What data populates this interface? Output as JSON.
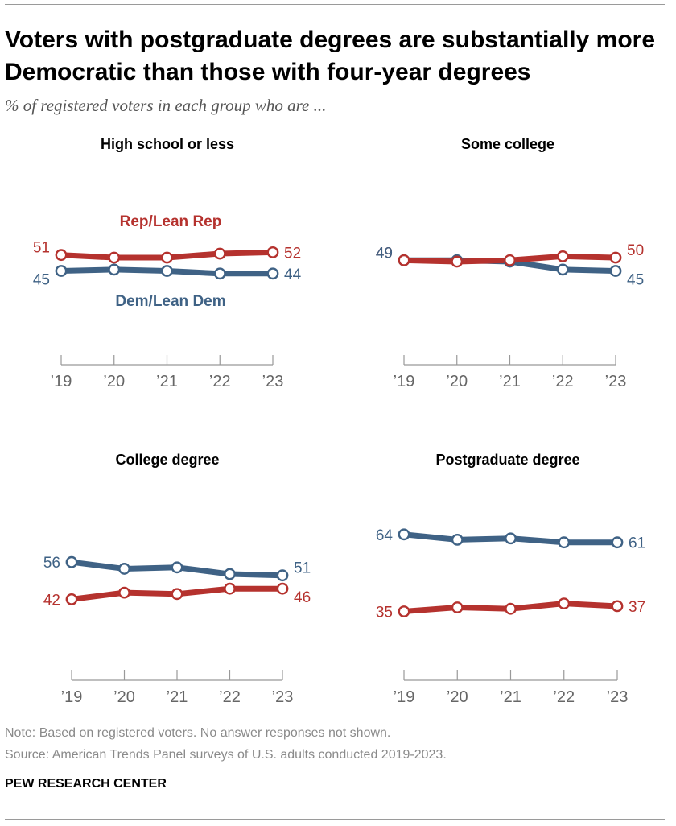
{
  "header": {
    "title": "Voters with postgraduate degrees are substantially more Democratic than those with four-year degrees",
    "subtitle": "% of registered voters in each group who are ..."
  },
  "footer": {
    "note": "Note: Based on registered voters. No answer responses not shown.",
    "source": "Source: American Trends Panel surveys of U.S. adults conducted 2019-2023.",
    "brand": "PEW RESEARCH CENTER"
  },
  "colors": {
    "rep": "#b5322e",
    "dem": "#3f6285",
    "axis": "#999999"
  },
  "chart_data": [
    {
      "type": "line",
      "title": "High school or less",
      "x": [
        "’19",
        "’20",
        "’21",
        "’22",
        "’23"
      ],
      "series": [
        {
          "name": "Rep/Lean Rep",
          "values": [
            51,
            50,
            50,
            51.5,
            52
          ],
          "start_label": "51",
          "end_label": "52"
        },
        {
          "name": "Dem/Lean Dem",
          "values": [
            45,
            45.5,
            45,
            44,
            44
          ],
          "start_label": "45",
          "end_label": "44"
        }
      ],
      "legend": [
        "Rep/Lean Rep",
        "Dem/Lean Dem"
      ]
    },
    {
      "type": "line",
      "title": "Some college",
      "x": [
        "’19",
        "’20",
        "’21",
        "’22",
        "’23"
      ],
      "series": [
        {
          "name": "Rep/Lean Rep",
          "values": [
            49,
            48.5,
            49,
            50.5,
            50
          ],
          "start_label": "49",
          "end_label": "50"
        },
        {
          "name": "Dem/Lean Dem",
          "values": [
            49,
            49,
            48.5,
            45.5,
            45
          ],
          "start_label": "49",
          "end_label": "45"
        }
      ]
    },
    {
      "type": "line",
      "title": "College degree",
      "x": [
        "’19",
        "’20",
        "’21",
        "’22",
        "’23"
      ],
      "series": [
        {
          "name": "Rep/Lean Rep",
          "values": [
            42,
            44.5,
            44,
            46,
            46
          ],
          "start_label": "42",
          "end_label": "46"
        },
        {
          "name": "Dem/Lean Dem",
          "values": [
            56,
            53.5,
            54,
            51.5,
            51
          ],
          "start_label": "56",
          "end_label": "51"
        }
      ]
    },
    {
      "type": "line",
      "title": "Postgraduate degree",
      "x": [
        "’19",
        "’20",
        "’21",
        "’22",
        "’23"
      ],
      "series": [
        {
          "name": "Rep/Lean Rep",
          "values": [
            35,
            36.5,
            36,
            38,
            37
          ],
          "start_label": "35",
          "end_label": "37"
        },
        {
          "name": "Dem/Lean Dem",
          "values": [
            64,
            62,
            62.5,
            61,
            61
          ],
          "start_label": "64",
          "end_label": "61"
        }
      ]
    }
  ]
}
